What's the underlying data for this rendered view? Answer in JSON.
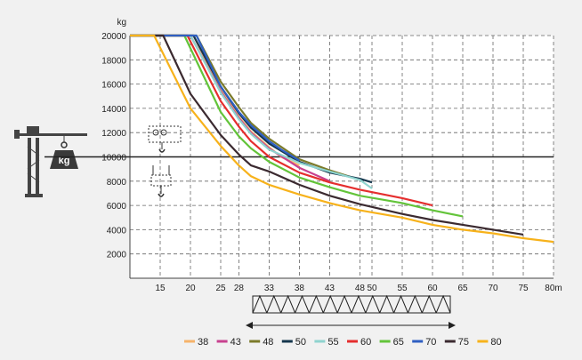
{
  "chart_data": {
    "type": "line",
    "title": "",
    "xlabel": "",
    "ylabel": "",
    "y_unit": "kg",
    "x_unit": "m",
    "xlim": [
      10,
      80
    ],
    "ylim": [
      0,
      20000
    ],
    "grid": true,
    "legend_position": "bottom",
    "reference_line_y": 10000,
    "x_ticks": [
      15,
      20,
      25,
      28,
      33,
      38,
      43,
      48,
      50,
      55,
      60,
      65,
      70,
      75,
      80
    ],
    "x_tick_labels": [
      "15",
      "20",
      "25",
      "28",
      "33",
      "38",
      "43",
      "48",
      "50",
      "55",
      "60",
      "65",
      "70",
      "75",
      "80m"
    ],
    "y_ticks": [
      2000,
      4000,
      6000,
      8000,
      10000,
      12000,
      14000,
      16000,
      18000,
      20000
    ],
    "y_tick_labels": [
      "2000",
      "4000",
      "6000",
      "8000",
      "10000",
      "12000",
      "14000",
      "16000",
      "18000",
      "20000"
    ],
    "series": [
      {
        "name": "38",
        "color": "#f6b36a",
        "x": [
          10,
          20.5,
          25,
          28,
          30,
          33,
          35,
          38
        ],
        "y": [
          20000,
          20000,
          15500,
          13300,
          12100,
          10800,
          10000,
          9300
        ]
      },
      {
        "name": "43",
        "color": "#c8418f",
        "x": [
          10,
          20,
          25,
          28,
          30,
          33,
          38,
          43
        ],
        "y": [
          20000,
          20000,
          15400,
          13200,
          12000,
          10700,
          9100,
          8000
        ]
      },
      {
        "name": "48",
        "color": "#7b7a2a",
        "x": [
          10,
          21,
          25,
          28,
          30,
          33,
          38,
          43,
          48
        ],
        "y": [
          20000,
          20000,
          16200,
          14100,
          12800,
          11500,
          9800,
          8900,
          8100
        ]
      },
      {
        "name": "50",
        "color": "#15364d",
        "x": [
          10,
          20.5,
          25,
          28,
          30,
          33,
          38,
          43,
          48,
          50
        ],
        "y": [
          20000,
          20000,
          15800,
          13600,
          12400,
          11100,
          9600,
          8700,
          8200,
          7900
        ]
      },
      {
        "name": "55",
        "color": "#8fd4cf",
        "x": [
          10,
          20,
          25,
          28,
          30,
          33,
          38,
          43,
          48,
          50
        ],
        "y": [
          20000,
          20000,
          15300,
          13100,
          11900,
          10600,
          9500,
          8800,
          8100,
          7400
        ]
      },
      {
        "name": "60",
        "color": "#e52e2e",
        "x": [
          10,
          19.5,
          25,
          28,
          30,
          33,
          38,
          43,
          48,
          55,
          60
        ],
        "y": [
          20000,
          20000,
          14600,
          12500,
          11300,
          10000,
          8700,
          7900,
          7300,
          6600,
          6000
        ]
      },
      {
        "name": "65",
        "color": "#63c43a",
        "x": [
          10,
          19,
          25,
          28,
          30,
          33,
          38,
          43,
          48,
          55,
          60,
          65
        ],
        "y": [
          20000,
          20000,
          13700,
          11700,
          10700,
          9600,
          8300,
          7500,
          6800,
          6200,
          5600,
          5100
        ]
      },
      {
        "name": "70",
        "color": "#2f5fc2",
        "x": [
          10,
          21,
          25,
          28,
          30,
          33,
          35,
          38
        ],
        "y": [
          20000,
          20000,
          15800,
          13700,
          12600,
          11300,
          10600,
          9700
        ]
      },
      {
        "name": "75",
        "color": "#3b2a30",
        "x": [
          10,
          15.5,
          20,
          25,
          28,
          30,
          33,
          38,
          43,
          48,
          55,
          60,
          65,
          70,
          75
        ],
        "y": [
          20000,
          20000,
          15200,
          11800,
          10200,
          9300,
          8800,
          7700,
          6800,
          6100,
          5300,
          4800,
          4400,
          4000,
          3600
        ]
      },
      {
        "name": "80",
        "color": "#f7b21b",
        "x": [
          10,
          14,
          17,
          20,
          25,
          28,
          30,
          33,
          38,
          43,
          48,
          55,
          60,
          65,
          70,
          75,
          80
        ],
        "y": [
          20000,
          20000,
          17000,
          14000,
          10900,
          9300,
          8400,
          7700,
          6900,
          6200,
          5600,
          5000,
          4400,
          4000,
          3700,
          3300,
          3000
        ]
      }
    ]
  }
}
